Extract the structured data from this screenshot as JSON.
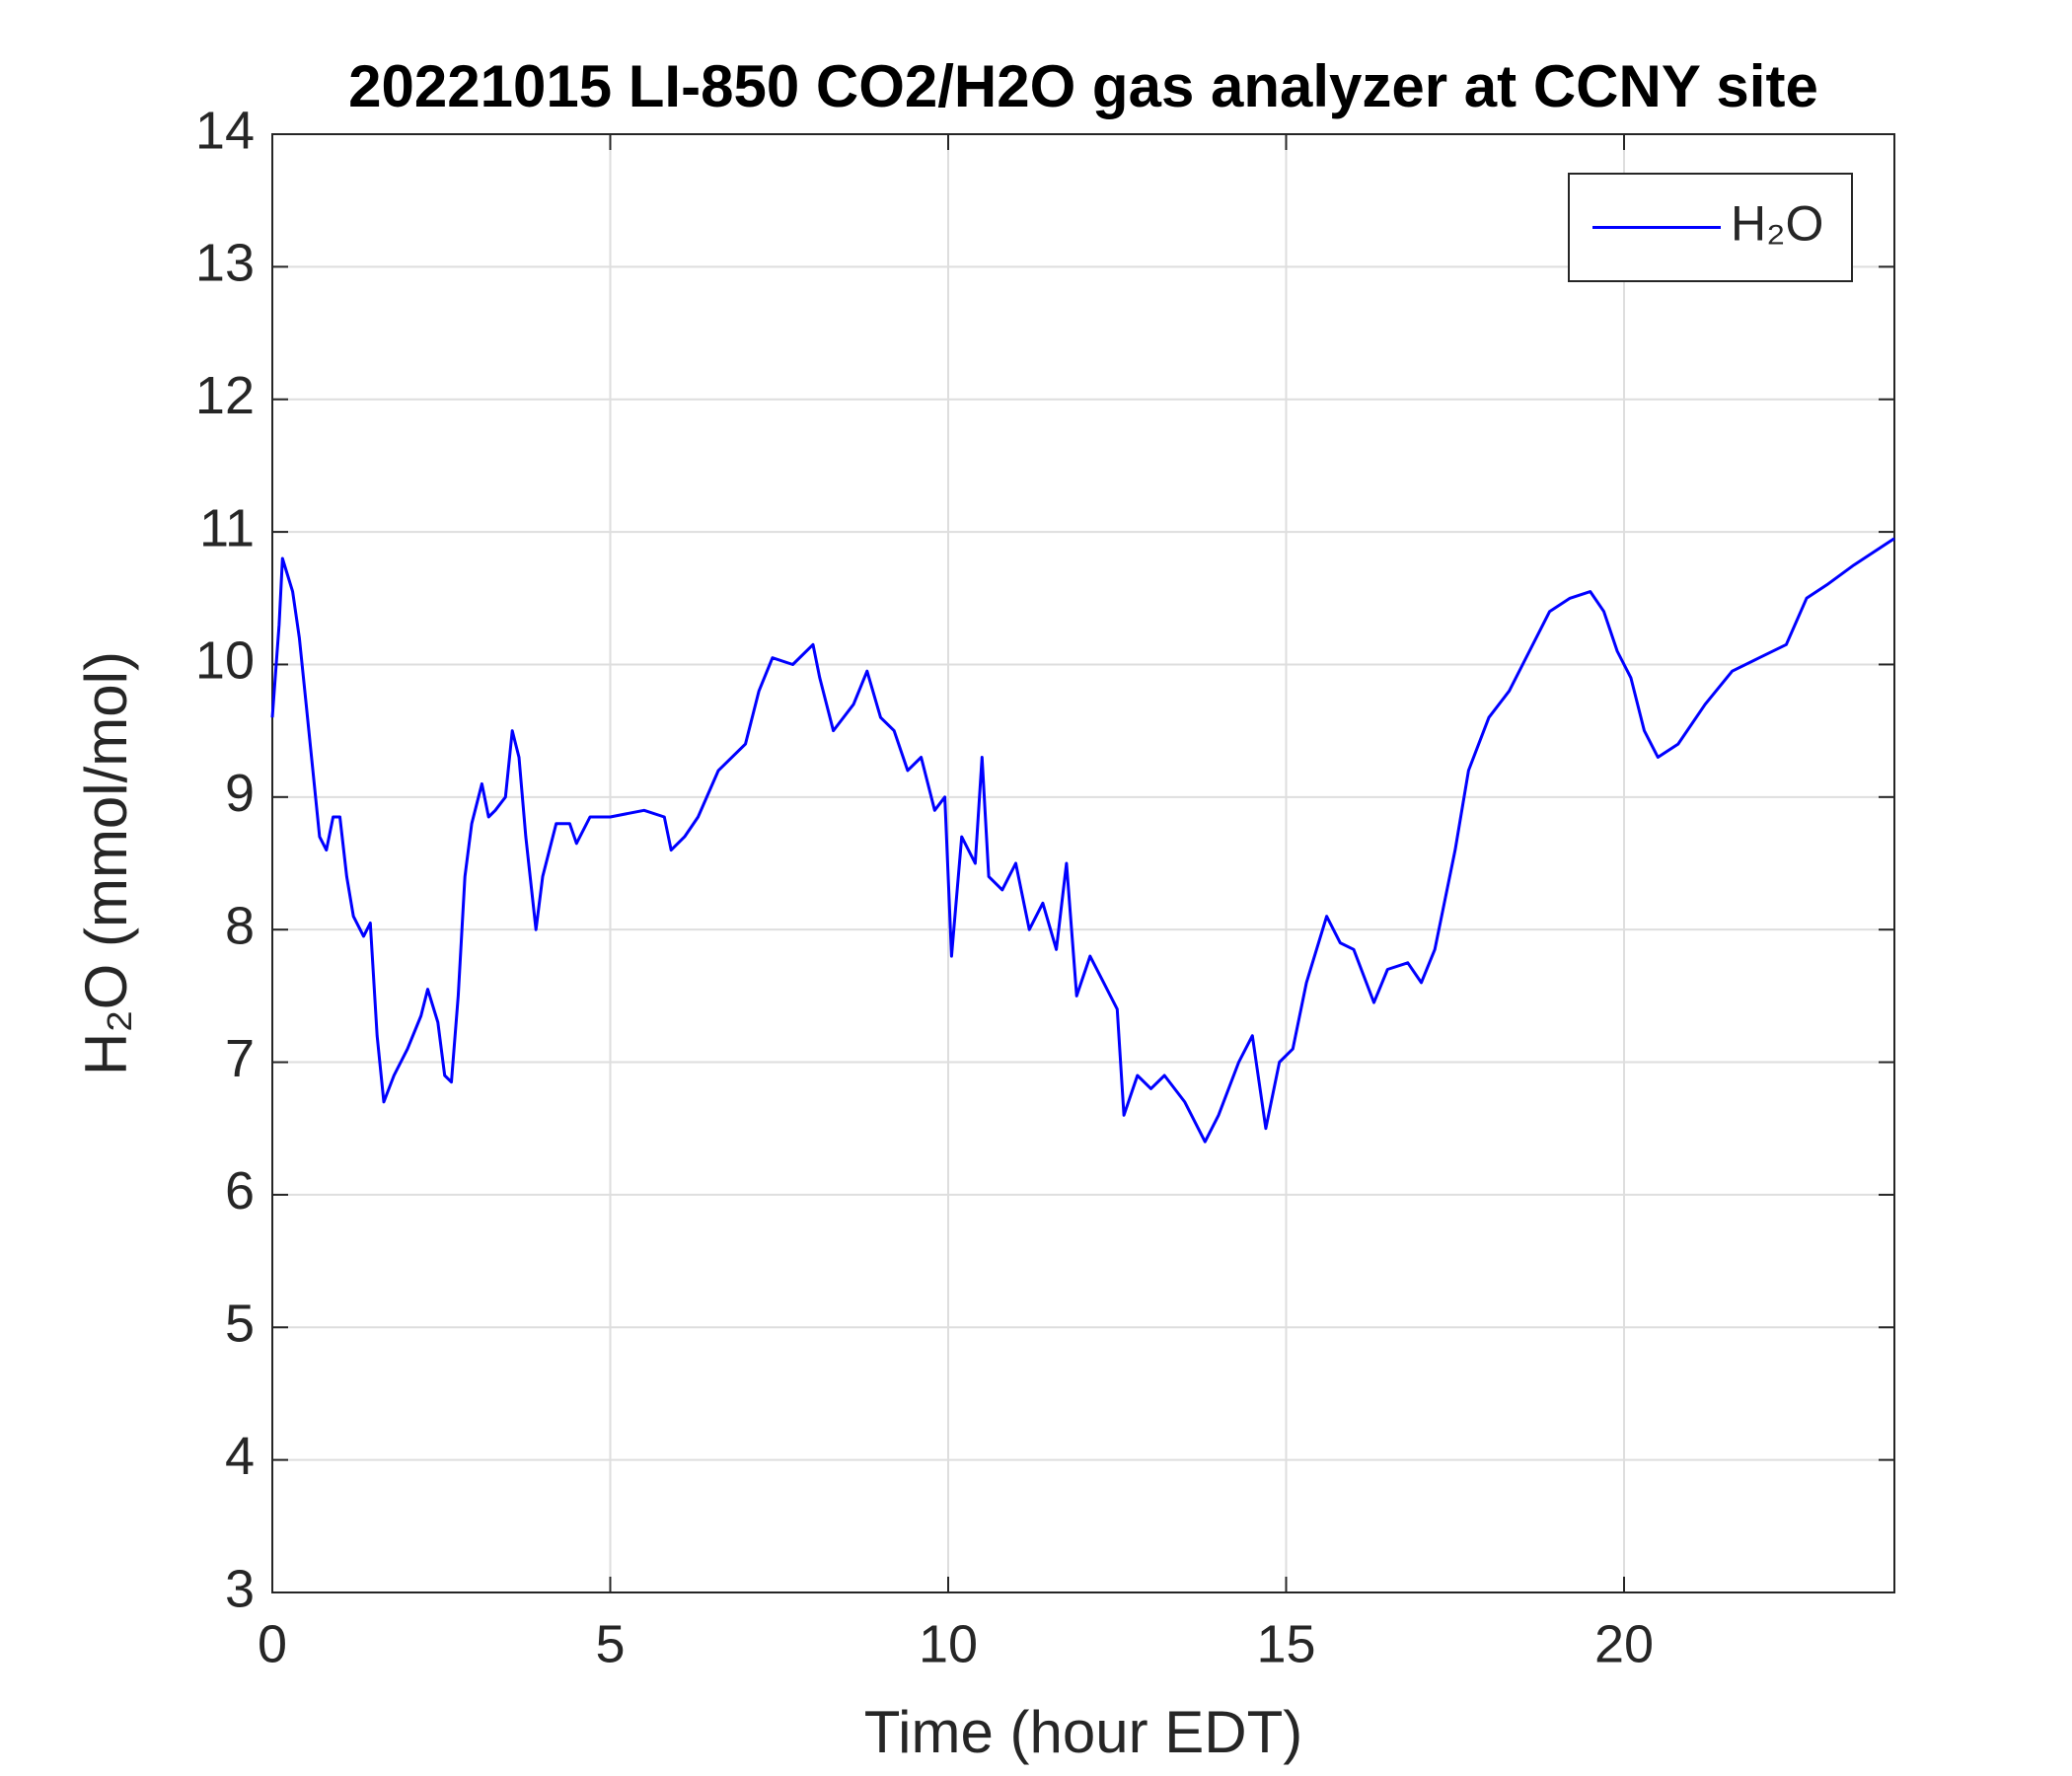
{
  "chart_data": {
    "type": "line",
    "title": "20221015 LI-850 CO2/H2O gas analyzer at CCNY site",
    "x_label": "Time (hour EDT)",
    "y_label": "H₂O (mmol/mol)",
    "xlim": [
      0,
      24
    ],
    "xticks": [
      0,
      5,
      10,
      15,
      20
    ],
    "ylim": [
      3,
      14
    ],
    "yticks": [
      3,
      4,
      5,
      6,
      7,
      8,
      9,
      10,
      11,
      12,
      13,
      14
    ],
    "grid": true,
    "legend": "upper right",
    "x": [
      0,
      0.1,
      0.15,
      0.3,
      0.4,
      0.5,
      0.6,
      0.7,
      0.8,
      0.9,
      1.0,
      1.1,
      1.2,
      1.35,
      1.45,
      1.55,
      1.65,
      1.8,
      2.0,
      2.2,
      2.3,
      2.45,
      2.55,
      2.65,
      2.75,
      2.85,
      2.95,
      3.1,
      3.2,
      3.3,
      3.45,
      3.55,
      3.65,
      3.75,
      3.9,
      4.0,
      4.2,
      4.4,
      4.5,
      4.7,
      5.0,
      5.5,
      5.8,
      5.9,
      6.1,
      6.3,
      6.6,
      7.0,
      7.2,
      7.4,
      7.7,
      8.0,
      8.1,
      8.3,
      8.6,
      8.8,
      9.0,
      9.2,
      9.4,
      9.6,
      9.8,
      9.95,
      10.05,
      10.2,
      10.4,
      10.5,
      10.6,
      10.8,
      11.0,
      11.2,
      11.4,
      11.6,
      11.75,
      11.9,
      12.1,
      12.3,
      12.5,
      12.6,
      12.8,
      13.0,
      13.2,
      13.5,
      13.8,
      14.0,
      14.3,
      14.5,
      14.7,
      14.9,
      15.1,
      15.3,
      15.6,
      15.8,
      16.0,
      16.3,
      16.5,
      16.8,
      17.0,
      17.2,
      17.5,
      17.7,
      18.0,
      18.3,
      18.6,
      18.9,
      19.2,
      19.5,
      19.7,
      19.9,
      20.1,
      20.3,
      20.5,
      20.8,
      21.2,
      21.6,
      22.0,
      22.4,
      22.7,
      23.0,
      23.4,
      23.7,
      24.0
    ],
    "series": [
      {
        "name": "H₂O",
        "color": "#0000ff",
        "values": [
          9.6,
          10.3,
          10.8,
          10.55,
          10.2,
          9.7,
          9.2,
          8.7,
          8.6,
          8.85,
          8.85,
          8.4,
          8.1,
          7.95,
          8.05,
          7.2,
          6.7,
          6.9,
          7.1,
          7.35,
          7.55,
          7.3,
          6.9,
          6.85,
          7.5,
          8.4,
          8.8,
          9.1,
          8.85,
          8.9,
          9.0,
          9.5,
          9.3,
          8.7,
          8.0,
          8.4,
          8.8,
          8.8,
          8.65,
          8.85,
          8.85,
          8.9,
          8.85,
          8.6,
          8.7,
          8.85,
          9.2,
          9.4,
          9.8,
          10.05,
          10.0,
          10.15,
          9.9,
          9.5,
          9.7,
          9.95,
          9.6,
          9.5,
          9.2,
          9.3,
          8.9,
          9.0,
          7.8,
          8.7,
          8.5,
          9.3,
          8.4,
          8.3,
          8.5,
          8.0,
          8.2,
          7.85,
          8.5,
          7.5,
          7.8,
          7.6,
          7.4,
          6.6,
          6.9,
          6.8,
          6.9,
          6.7,
          6.4,
          6.6,
          7.0,
          7.2,
          6.5,
          7.0,
          7.1,
          7.6,
          8.1,
          7.9,
          7.85,
          7.45,
          7.7,
          7.75,
          7.6,
          7.85,
          8.6,
          9.2,
          9.6,
          9.8,
          10.1,
          10.4,
          10.5,
          10.55,
          10.4,
          10.1,
          9.9,
          9.5,
          9.3,
          9.4,
          9.7,
          9.95,
          10.05,
          10.15,
          10.5,
          10.6,
          10.75,
          10.85,
          10.95
        ]
      }
    ]
  }
}
